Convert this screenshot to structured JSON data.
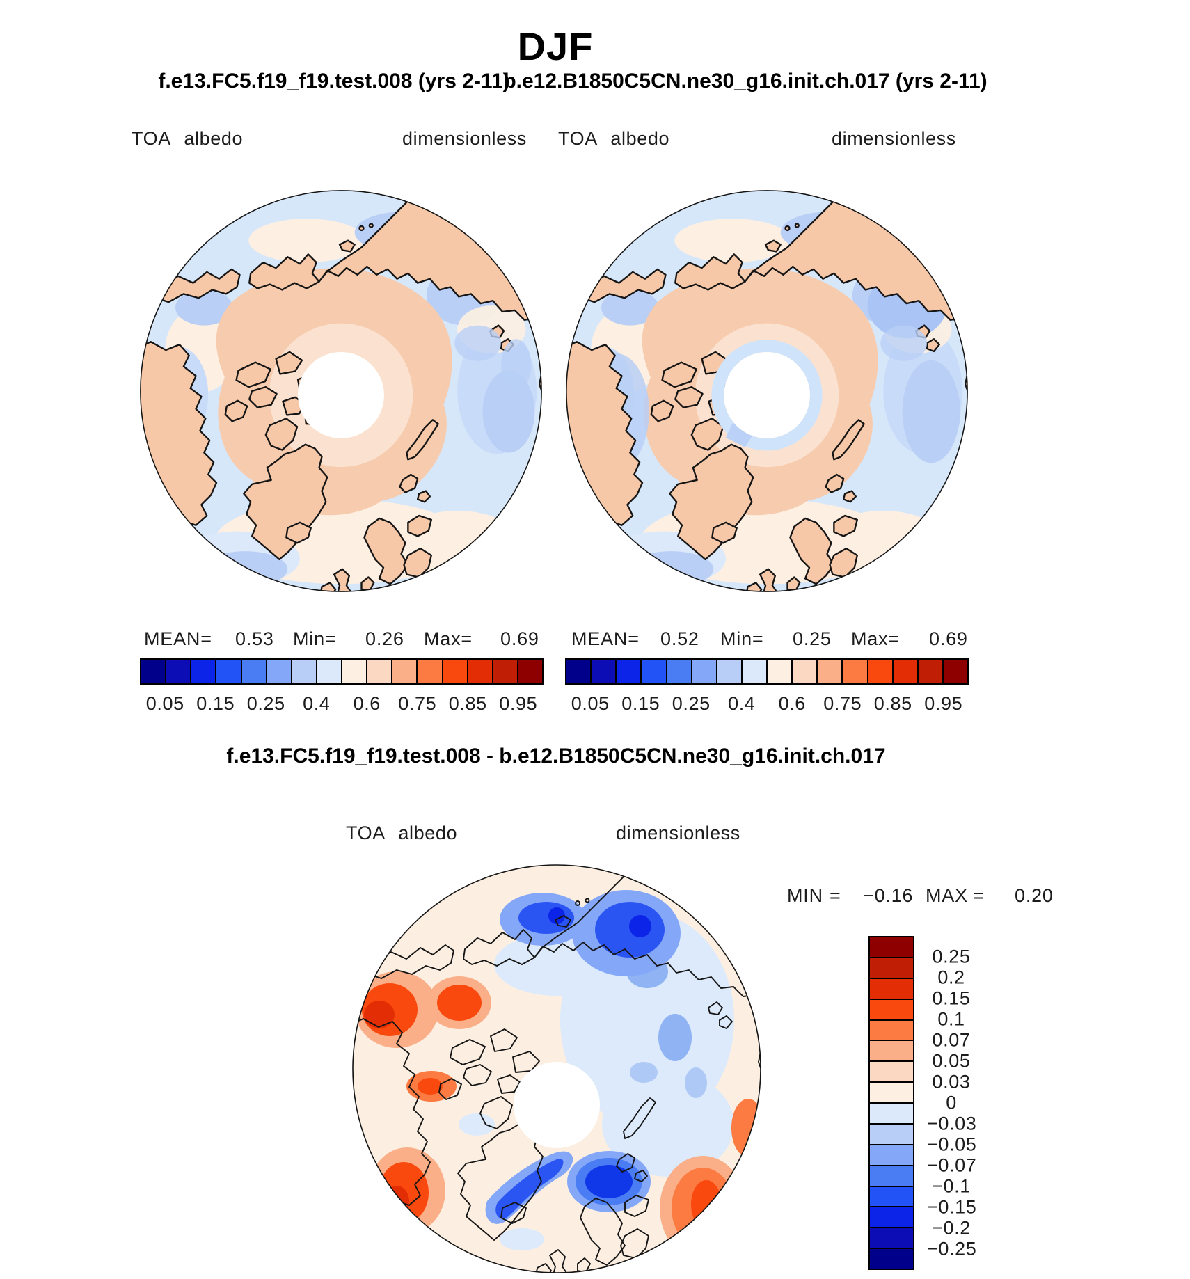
{
  "page": {
    "title": "DJF"
  },
  "header": {
    "left_case": "f.e13.FC5.f19_f19.test.008 (yrs 2-11)",
    "right_case": "b.e12.B1850C5CN.ne30_g16.init.ch.017 (yrs 2-11)"
  },
  "panels": {
    "left": {
      "variable": "TOA albedo",
      "units": "dimensionless",
      "mean_label": "MEAN=",
      "min_label": "Min=",
      "max_label": "Max=",
      "mean": "0.53",
      "min": "0.26",
      "max": "0.69"
    },
    "right": {
      "variable": "TOA albedo",
      "units": "dimensionless",
      "mean_label": "MEAN=",
      "min_label": "Min=",
      "max_label": "Max=",
      "mean": "0.52",
      "min": "0.25",
      "max": "0.69"
    }
  },
  "albedo_colorbar": {
    "tick_labels": [
      "0.05",
      "0.15",
      "0.25",
      "0.4",
      "0.6",
      "0.75",
      "0.85",
      "0.95"
    ],
    "colors": [
      "#00008B",
      "#0D0DB5",
      "#0B24E8",
      "#2153F7",
      "#4A7CF3",
      "#84A7F7",
      "#B9CEF6",
      "#DCE9FB",
      "#FDEFE1",
      "#FBD8C2",
      "#FBAF88",
      "#FB7B42",
      "#F9490E",
      "#E32D04",
      "#C11F05",
      "#8E0000"
    ]
  },
  "diff": {
    "title": "f.e13.FC5.f19_f19.test.008 - b.e12.B1850C5CN.ne30_g16.init.ch.017",
    "variable": "TOA albedo",
    "units": "dimensionless",
    "min_label": "MIN",
    "eq": "=",
    "max_label": "MAX",
    "min": "−0.16",
    "max": "0.20",
    "colorbar": {
      "tick_labels": [
        "0.25",
        "0.2",
        "0.15",
        "0.1",
        "0.07",
        "0.05",
        "0.03",
        "0",
        "−0.03",
        "−0.05",
        "−0.07",
        "−0.1",
        "−0.15",
        "−0.2",
        "−0.25"
      ],
      "colors": [
        "#8E0000",
        "#C11F05",
        "#E32D04",
        "#F9490E",
        "#FB7B42",
        "#FBAF88",
        "#FBD8C2",
        "#FDEFE1",
        "#DCE9FB",
        "#B9CEF6",
        "#84A7F7",
        "#4A7CF3",
        "#2153F7",
        "#0B24E8",
        "#0D0DB5",
        "#00008B"
      ]
    }
  },
  "chart_data": [
    {
      "type": "heatmap",
      "projection": "polar_stereographic_north",
      "title": "f.e13.FC5.f19_f19.test.008 (yrs 2-11)",
      "season": "DJF",
      "variable": "TOA albedo",
      "units": "dimensionless",
      "stats": {
        "mean": 0.53,
        "min": 0.26,
        "max": 0.69
      },
      "levels": [
        0.05,
        0.1,
        0.15,
        0.2,
        0.25,
        0.3,
        0.4,
        0.5,
        0.6,
        0.7,
        0.75,
        0.8,
        0.85,
        0.9,
        0.95
      ],
      "labeled_levels": [
        0.05,
        0.15,
        0.25,
        0.4,
        0.6,
        0.75,
        0.85,
        0.95
      ],
      "palette_low_to_high": [
        "#00008B",
        "#0D0DB5",
        "#0B24E8",
        "#2153F7",
        "#4A7CF3",
        "#84A7F7",
        "#B9CEF6",
        "#DCE9FB",
        "#FDEFE1",
        "#FBD8C2",
        "#FBAF88",
        "#FB7B42",
        "#F9490E",
        "#E32D04",
        "#C11F05",
        "#8E0000"
      ],
      "legend_position": "bottom"
    },
    {
      "type": "heatmap",
      "projection": "polar_stereographic_north",
      "title": "b.e12.B1850C5CN.ne30_g16.init.ch.017 (yrs 2-11)",
      "season": "DJF",
      "variable": "TOA albedo",
      "units": "dimensionless",
      "stats": {
        "mean": 0.52,
        "min": 0.25,
        "max": 0.69
      },
      "levels": [
        0.05,
        0.1,
        0.15,
        0.2,
        0.25,
        0.3,
        0.4,
        0.5,
        0.6,
        0.7,
        0.75,
        0.8,
        0.85,
        0.9,
        0.95
      ],
      "labeled_levels": [
        0.05,
        0.15,
        0.25,
        0.4,
        0.6,
        0.75,
        0.85,
        0.95
      ],
      "palette_low_to_high": [
        "#00008B",
        "#0D0DB5",
        "#0B24E8",
        "#2153F7",
        "#4A7CF3",
        "#84A7F7",
        "#B9CEF6",
        "#DCE9FB",
        "#FDEFE1",
        "#FBD8C2",
        "#FBAF88",
        "#FB7B42",
        "#F9490E",
        "#E32D04",
        "#C11F05",
        "#8E0000"
      ],
      "legend_position": "bottom"
    },
    {
      "type": "heatmap",
      "projection": "polar_stereographic_north",
      "title": "f.e13.FC5.f19_f19.test.008 - b.e12.B1850C5CN.ne30_g16.init.ch.017",
      "season": "DJF",
      "variable": "TOA albedo difference",
      "units": "dimensionless",
      "stats": {
        "min": -0.16,
        "max": 0.2
      },
      "levels": [
        -0.25,
        -0.2,
        -0.15,
        -0.1,
        -0.07,
        -0.05,
        -0.03,
        0,
        0.03,
        0.05,
        0.07,
        0.1,
        0.15,
        0.2,
        0.25
      ],
      "palette_low_to_high": [
        "#00008B",
        "#0D0DB5",
        "#0B24E8",
        "#2153F7",
        "#4A7CF3",
        "#84A7F7",
        "#B9CEF6",
        "#DCE9FB",
        "#FDEFE1",
        "#FBD8C2",
        "#FBAF88",
        "#FB7B42",
        "#F9490E",
        "#E32D04",
        "#C11F05",
        "#8E0000"
      ],
      "legend_position": "right"
    }
  ]
}
